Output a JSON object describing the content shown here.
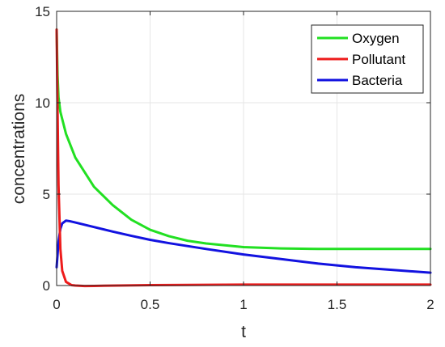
{
  "chart_data": {
    "type": "line",
    "xlabel": "t",
    "ylabel": "concentrations",
    "xlim": [
      0,
      2
    ],
    "ylim": [
      0,
      15
    ],
    "x_ticks": [
      0,
      0.5,
      1,
      1.5,
      2
    ],
    "x_tick_labels": [
      "0",
      "0.5",
      "1",
      "1.5",
      "2"
    ],
    "y_ticks": [
      0,
      5,
      10,
      15
    ],
    "y_tick_labels": [
      "0",
      "5",
      "10",
      "15"
    ],
    "grid": true,
    "legend_placement": "top-right",
    "series": [
      {
        "name": "Oxygen",
        "color": "#22e022",
        "x": [
          0,
          0.005,
          0.01,
          0.02,
          0.05,
          0.1,
          0.2,
          0.3,
          0.4,
          0.5,
          0.6,
          0.7,
          0.8,
          1.0,
          1.2,
          1.4,
          1.6,
          1.8,
          2.0
        ],
        "y": [
          14,
          11.5,
          10.3,
          9.5,
          8.3,
          7.0,
          5.4,
          4.4,
          3.6,
          3.05,
          2.7,
          2.45,
          2.3,
          2.1,
          2.03,
          2.0,
          2.0,
          2.0,
          2.0
        ]
      },
      {
        "name": "Pollutant",
        "color": "#ee1c1c",
        "x": [
          0,
          0.005,
          0.01,
          0.02,
          0.03,
          0.05,
          0.08,
          0.1,
          0.15,
          0.2,
          0.5,
          1.0,
          1.5,
          2.0
        ],
        "y": [
          14,
          9.5,
          5.5,
          2.0,
          0.8,
          0.2,
          0.02,
          0.0,
          -0.03,
          -0.02,
          0.02,
          0.05,
          0.05,
          0.05
        ]
      },
      {
        "name": "Bacteria",
        "color": "#1212e0",
        "x": [
          0,
          0.01,
          0.02,
          0.03,
          0.05,
          0.07,
          0.1,
          0.2,
          0.3,
          0.4,
          0.5,
          0.6,
          0.8,
          1.0,
          1.2,
          1.4,
          1.6,
          1.8,
          2.0
        ],
        "y": [
          1.0,
          2.4,
          3.1,
          3.4,
          3.55,
          3.52,
          3.45,
          3.2,
          2.95,
          2.72,
          2.5,
          2.32,
          2.0,
          1.7,
          1.45,
          1.2,
          1.0,
          0.85,
          0.7
        ]
      }
    ]
  }
}
